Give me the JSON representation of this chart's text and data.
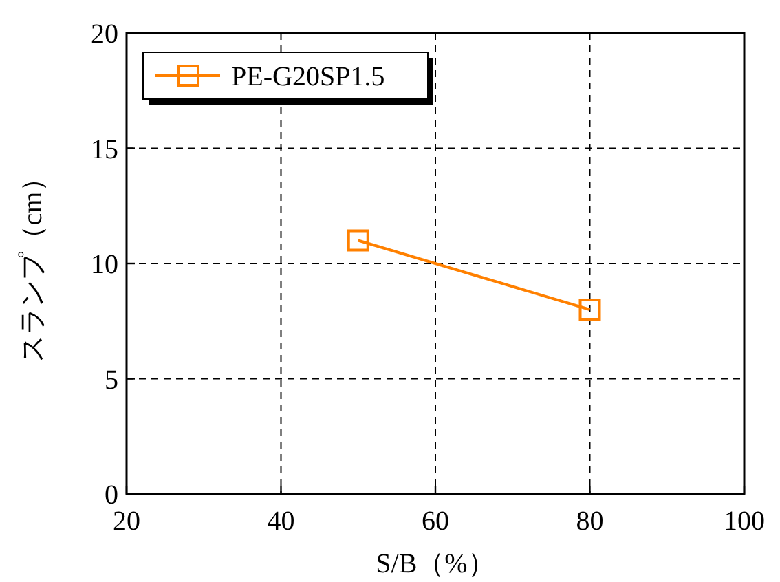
{
  "chart_data": {
    "type": "line",
    "xlabel": "S/B（%）",
    "ylabel": "スランプ（cm）",
    "x": [
      50,
      80
    ],
    "series": [
      {
        "name": "PE-G20SP1.5",
        "color": "#ff8000",
        "values": [
          11,
          8
        ]
      }
    ],
    "xlim": [
      20,
      100
    ],
    "ylim": [
      0,
      20
    ],
    "xticks": [
      20,
      40,
      60,
      80,
      100
    ],
    "yticks": [
      0,
      5,
      10,
      15,
      20
    ],
    "grid": true,
    "legend": "top left",
    "marker": "square",
    "line_style": "solid"
  }
}
